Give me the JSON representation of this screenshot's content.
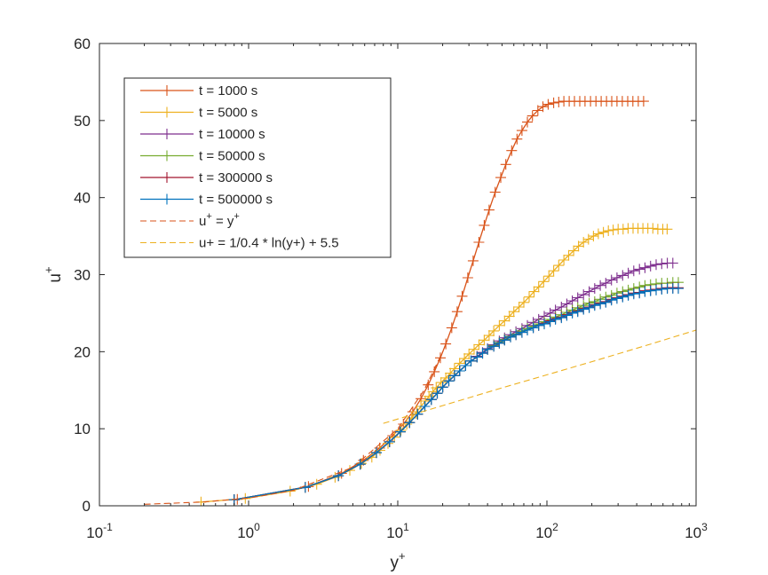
{
  "chart_data": {
    "type": "line",
    "xscale": "log",
    "xlim": [
      0.1,
      1000
    ],
    "ylim": [
      0,
      60
    ],
    "x_tick_labels": [
      {
        "value": 0.1,
        "base": "10",
        "exp": "-1"
      },
      {
        "value": 1,
        "base": "10",
        "exp": "0"
      },
      {
        "value": 10,
        "base": "10",
        "exp": "1"
      },
      {
        "value": 100,
        "base": "10",
        "exp": "2"
      },
      {
        "value": 1000,
        "base": "10",
        "exp": "3"
      }
    ],
    "y_ticks": [
      0,
      10,
      20,
      30,
      40,
      50,
      60
    ],
    "xlabel": {
      "base": "y",
      "sup": "+"
    },
    "ylabel": {
      "base": "u",
      "sup": "+"
    },
    "grid": false,
    "legend_position": "top-left",
    "series": [
      {
        "name": "t = 1000 s",
        "color": "#D95319",
        "marker": "+",
        "style": "solid",
        "x": [
          0.84,
          2.52,
          4.2,
          5.88,
          7.56,
          9.24,
          10.9,
          12.6,
          14.3,
          16.0,
          17.6,
          19.3,
          21.0,
          23.0,
          25.0,
          27.0,
          29.5,
          32.0,
          35.0,
          38.0,
          41.0,
          45.0,
          49.0,
          53.0,
          58.0,
          63.0,
          68.0,
          74.0,
          80.0,
          87.0,
          94.0,
          102,
          111,
          120,
          130,
          141,
          153,
          166,
          180,
          196,
          213,
          231,
          251,
          272,
          295,
          320,
          348,
          377,
          410,
          445
        ],
        "y": [
          0.84,
          2.5,
          4.2,
          5.9,
          7.5,
          9.1,
          10.6,
          12.2,
          13.9,
          15.7,
          17.4,
          19.2,
          21.0,
          23.1,
          25.2,
          27.2,
          29.6,
          31.8,
          34.2,
          36.4,
          38.4,
          40.7,
          42.6,
          44.3,
          46.1,
          47.6,
          48.7,
          49.8,
          50.6,
          51.3,
          51.8,
          52.1,
          52.3,
          52.4,
          52.5,
          52.5,
          52.5,
          52.5,
          52.5,
          52.5,
          52.5,
          52.5,
          52.5,
          52.5,
          52.5,
          52.5,
          52.5,
          52.5,
          52.5,
          52.5
        ]
      },
      {
        "name": "t = 5000 s",
        "color": "#EDB120",
        "marker": "+",
        "style": "solid",
        "x": [
          0.48,
          0.95,
          1.9,
          2.86,
          3.8,
          4.77,
          5.7,
          6.7,
          7.6,
          8.6,
          9.5,
          10.5,
          11.5,
          12.4,
          13.4,
          14.3,
          15.3,
          16.2,
          17.2,
          18.1,
          19.5,
          21.0,
          22.5,
          24.0,
          26.0,
          28.0,
          30.0,
          32.5,
          35.0,
          38.0,
          41.0,
          44.0,
          48.0,
          52.0,
          56.0,
          60.0,
          65.0,
          70.0,
          76.0,
          82.0,
          88.0,
          95.0,
          103,
          111,
          120,
          130,
          140,
          151,
          163,
          176,
          190,
          205,
          221,
          239,
          258,
          278,
          300,
          324,
          350,
          378,
          408,
          440,
          475,
          513,
          554,
          598,
          640
        ],
        "y": [
          0.48,
          0.95,
          1.9,
          2.8,
          3.7,
          4.6,
          5.5,
          6.3,
          7.2,
          8.1,
          8.9,
          9.8,
          10.6,
          11.4,
          12.2,
          12.9,
          13.6,
          14.2,
          14.8,
          15.3,
          16.0,
          16.6,
          17.2,
          17.8,
          18.5,
          19.1,
          19.7,
          20.3,
          20.9,
          21.5,
          22.1,
          22.7,
          23.4,
          24.0,
          24.6,
          25.2,
          25.8,
          26.4,
          27.1,
          27.8,
          28.4,
          29.1,
          29.8,
          30.5,
          31.2,
          31.9,
          32.5,
          33.1,
          33.7,
          34.2,
          34.6,
          35.0,
          35.3,
          35.5,
          35.7,
          35.8,
          35.9,
          35.9,
          36.0,
          36.0,
          36.0,
          36.0,
          36.0,
          36.0,
          35.9,
          35.9,
          35.9
        ]
      },
      {
        "name": "t = 10000 s",
        "color": "#7E2F8E",
        "marker": "+",
        "style": "solid",
        "x": [
          0.8,
          2.4,
          4.0,
          5.6,
          7.2,
          8.8,
          10.4,
          12.0,
          13.6,
          15.2,
          16.8,
          18.4,
          20.0,
          22.0,
          24.0,
          26.0,
          28.5,
          31.0,
          34.0,
          37.0,
          40.0,
          44.0,
          48.0,
          52.0,
          57.0,
          62.0,
          68.0,
          74.0,
          81.0,
          88.0,
          96.0,
          105,
          114,
          125,
          136,
          148,
          161,
          176,
          192,
          209,
          228,
          248,
          271,
          295,
          322,
          351,
          382,
          417,
          454,
          495,
          540,
          588,
          641,
          698
        ],
        "y": [
          0.8,
          2.4,
          3.9,
          5.4,
          6.9,
          8.3,
          9.6,
          10.8,
          11.9,
          12.9,
          13.8,
          14.6,
          15.4,
          16.2,
          16.9,
          17.5,
          18.2,
          18.8,
          19.4,
          19.9,
          20.4,
          20.9,
          21.4,
          21.8,
          22.2,
          22.6,
          23.0,
          23.4,
          23.8,
          24.2,
          24.6,
          25.0,
          25.4,
          25.8,
          26.2,
          26.6,
          27.0,
          27.4,
          27.8,
          28.2,
          28.6,
          28.9,
          29.3,
          29.6,
          29.9,
          30.2,
          30.5,
          30.7,
          30.9,
          31.1,
          31.3,
          31.4,
          31.5,
          31.5
        ]
      },
      {
        "name": "t = 50000 s",
        "color": "#77AC30",
        "marker": "+",
        "style": "solid",
        "x": [
          0.8,
          2.4,
          4.0,
          5.6,
          7.2,
          8.8,
          10.4,
          12.0,
          13.6,
          15.2,
          16.8,
          18.4,
          20.0,
          22.0,
          24.0,
          26.0,
          28.5,
          31.0,
          34.0,
          37.0,
          40.0,
          44.0,
          48.0,
          52.0,
          57.0,
          62.0,
          68.0,
          74.0,
          81.0,
          88.0,
          96.0,
          105,
          114,
          125,
          136,
          148,
          161,
          176,
          192,
          209,
          228,
          248,
          271,
          295,
          322,
          351,
          382,
          417,
          454,
          495,
          540,
          588,
          641,
          698,
          760
        ],
        "y": [
          0.8,
          2.4,
          3.9,
          5.4,
          6.9,
          8.3,
          9.6,
          10.8,
          11.9,
          12.9,
          13.8,
          14.6,
          15.4,
          16.2,
          16.9,
          17.5,
          18.2,
          18.8,
          19.3,
          19.8,
          20.3,
          20.8,
          21.2,
          21.6,
          22.0,
          22.3,
          22.7,
          23.0,
          23.3,
          23.6,
          23.9,
          24.2,
          24.5,
          24.8,
          25.1,
          25.4,
          25.7,
          26.0,
          26.3,
          26.5,
          26.8,
          27.1,
          27.3,
          27.6,
          27.8,
          28.0,
          28.2,
          28.4,
          28.6,
          28.7,
          28.8,
          28.9,
          28.9,
          29.0,
          29.0
        ]
      },
      {
        "name": "t = 300000 s",
        "color": "#A2142F",
        "marker": "+",
        "style": "solid",
        "x": [
          0.8,
          2.4,
          4.0,
          5.6,
          7.2,
          8.8,
          10.4,
          12.0,
          13.6,
          15.2,
          16.8,
          18.4,
          20.0,
          22.0,
          24.0,
          26.0,
          28.5,
          31.0,
          34.0,
          37.0,
          40.0,
          44.0,
          48.0,
          52.0,
          57.0,
          62.0,
          68.0,
          74.0,
          81.0,
          88.0,
          96.0,
          105,
          114,
          125,
          136,
          148,
          161,
          176,
          192,
          209,
          228,
          248,
          271,
          295,
          322,
          351,
          382,
          417,
          454,
          495,
          540,
          588,
          641,
          698,
          760
        ],
        "y": [
          0.8,
          2.4,
          3.9,
          5.4,
          6.9,
          8.3,
          9.6,
          10.8,
          11.9,
          12.9,
          13.8,
          14.6,
          15.4,
          16.2,
          16.9,
          17.5,
          18.2,
          18.8,
          19.3,
          19.8,
          20.3,
          20.7,
          21.1,
          21.5,
          21.9,
          22.2,
          22.5,
          22.8,
          23.1,
          23.4,
          23.7,
          24.0,
          24.3,
          24.5,
          24.8,
          25.1,
          25.3,
          25.6,
          25.8,
          26.1,
          26.3,
          26.5,
          26.8,
          27.0,
          27.2,
          27.4,
          27.6,
          27.7,
          27.9,
          28.0,
          28.1,
          28.2,
          28.3,
          28.3,
          28.3
        ]
      },
      {
        "name": "t = 500000 s",
        "color": "#0072BD",
        "marker": "+",
        "style": "solid",
        "x": [
          0.8,
          2.4,
          4.0,
          5.6,
          7.2,
          8.8,
          10.4,
          12.0,
          13.6,
          15.2,
          16.8,
          18.4,
          20.0,
          22.0,
          24.0,
          26.0,
          28.5,
          31.0,
          34.0,
          37.0,
          40.0,
          44.0,
          48.0,
          52.0,
          57.0,
          62.0,
          68.0,
          74.0,
          81.0,
          88.0,
          96.0,
          105,
          114,
          125,
          136,
          148,
          161,
          176,
          192,
          209,
          228,
          248,
          271,
          295,
          322,
          351,
          382,
          417,
          454,
          495,
          540,
          588,
          641,
          698,
          760
        ],
        "y": [
          0.8,
          2.4,
          3.9,
          5.4,
          6.9,
          8.3,
          9.6,
          10.8,
          11.9,
          12.9,
          13.8,
          14.6,
          15.4,
          16.2,
          16.9,
          17.5,
          18.2,
          18.8,
          19.3,
          19.8,
          20.3,
          20.7,
          21.1,
          21.5,
          21.9,
          22.2,
          22.5,
          22.8,
          23.1,
          23.4,
          23.6,
          23.9,
          24.2,
          24.4,
          24.7,
          25.0,
          25.2,
          25.5,
          25.7,
          26.0,
          26.2,
          26.4,
          26.7,
          26.9,
          27.1,
          27.3,
          27.5,
          27.6,
          27.8,
          27.9,
          28.0,
          28.1,
          28.2,
          28.2,
          28.2
        ]
      },
      {
        "name_base": "u",
        "name_mid": " = y",
        "name_sup": "+",
        "color": "#D95319",
        "marker": "none",
        "style": "dashed",
        "x": [
          0.2,
          0.5,
          1,
          2,
          5,
          10,
          15,
          20
        ],
        "y": [
          0.2,
          0.5,
          1,
          2,
          5,
          10,
          15,
          20
        ]
      },
      {
        "name": "u+ = 1/0.4 * ln(y+) + 5.5",
        "color": "#EDB120",
        "marker": "none",
        "style": "dashed",
        "x": [
          8,
          20,
          50,
          100,
          200,
          500,
          1000
        ],
        "y": [
          10.7,
          13.0,
          15.3,
          17.0,
          18.7,
          21.0,
          22.8
        ]
      }
    ]
  }
}
